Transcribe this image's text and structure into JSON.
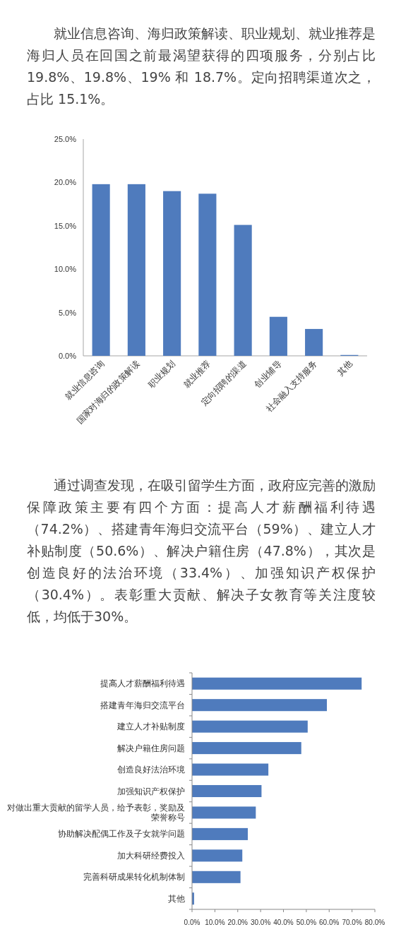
{
  "chart_data": [
    {
      "type": "bar",
      "annotations": [
        "就业信息咨询、海归政策解读、职业规划、就业推荐是海归人员在回国之前最渴望获得的四项服务，分别占比 19.8%、19.8%、19% 和 18.7%。定向招聘渠道次之，占比 15.1%。"
      ],
      "categories": [
        "就业信息咨询",
        "国家对海归的政策解读",
        "职业规划",
        "就业推荐",
        "定向招聘的渠道",
        "创业辅导",
        "社会融入支持服务",
        "其他"
      ],
      "values": [
        19.8,
        19.8,
        19.0,
        18.7,
        15.1,
        4.5,
        3.1,
        0.1
      ],
      "color": "#4f7bbd",
      "ylim": [
        0,
        25
      ],
      "yticks": [
        {
          "value": 0,
          "label": "0.0%"
        },
        {
          "value": 5,
          "label": "5.0%"
        },
        {
          "value": 10,
          "label": "10.0%"
        },
        {
          "value": 15,
          "label": "15.0%"
        },
        {
          "value": 20,
          "label": "20.0%"
        },
        {
          "value": 25,
          "label": "25.0%"
        }
      ]
    },
    {
      "type": "bar",
      "orientation": "horizontal",
      "annotations": [
        "通过调查发现，在吸引留学生方面，政府应完善的激励保障政策主要有四个方面：提高人才薪酬福利待遇（74.2%）、搭建青年海归交流平台（59%）、建立人才补贴制度（50.6%）、解决户籍住房（47.8%），其次是创造良好的法治环境（33.4%）、加强知识产权保护（30.4%）。表彰重大贡献、解决子女教育等关注度较低，均低于30%。"
      ],
      "categories": [
        "提高人才薪酬福利待遇",
        "搭建青年海归交流平台",
        "建立人才补贴制度",
        "解决户籍住房问题",
        "创造良好法治环境",
        "加强知识产权保护",
        "对做出重大贡献的留学人员，给予表彰，奖励及荣誉称号",
        "协助解决配偶工作及子女就学问题",
        "加大科研经费投入",
        "完善科研成果转化机制体制",
        "其他"
      ],
      "values": [
        74.2,
        59.0,
        50.6,
        47.8,
        33.4,
        30.4,
        27.9,
        24.4,
        22.0,
        21.2,
        0.9
      ],
      "color": "#4f7bbd",
      "xlim": [
        0,
        80
      ],
      "xticks": [
        {
          "value": 0,
          "label": "0.0%"
        },
        {
          "value": 10,
          "label": "10.0%"
        },
        {
          "value": 20,
          "label": "20.0%"
        },
        {
          "value": 30,
          "label": "30.0%"
        },
        {
          "value": 40,
          "label": "40.0%"
        },
        {
          "value": 50,
          "label": "50.0%"
        },
        {
          "value": 60,
          "label": "60.0%"
        },
        {
          "value": 70,
          "label": "70.0%"
        },
        {
          "value": 80,
          "label": "80.0%"
        }
      ]
    }
  ]
}
